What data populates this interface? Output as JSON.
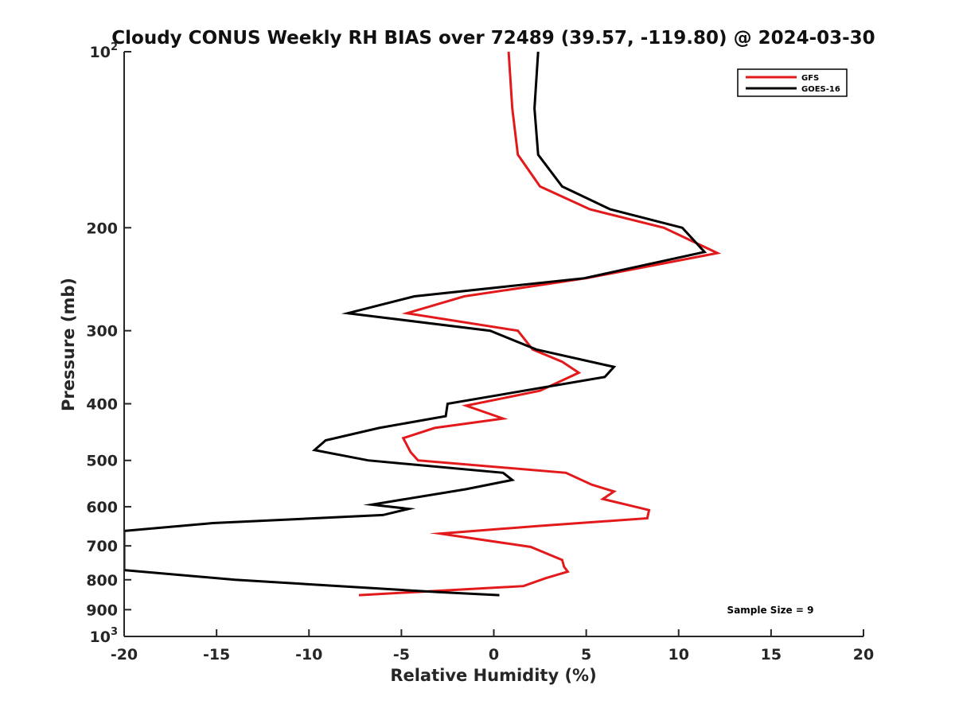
{
  "chart_data": {
    "type": "line",
    "title": "Cloudy CONUS Weekly RH BIAS over 72489 (39.57, -119.80) @ 2024-03-30",
    "xlabel": "Relative Humidity (%)",
    "ylabel": "Pressure (mb)",
    "xlim": [
      -20,
      20
    ],
    "ylim": [
      1000,
      100
    ],
    "yscale": "log",
    "x_ticks": [
      -20,
      -15,
      -10,
      -5,
      0,
      5,
      10,
      15,
      20
    ],
    "x_tick_labels": [
      "-20",
      "-15",
      "-10",
      "-5",
      "0",
      "5",
      "10",
      "15",
      "20"
    ],
    "y_ticks": [
      100,
      200,
      300,
      400,
      500,
      600,
      700,
      800,
      900,
      1000
    ],
    "y_tick_labels": [
      {
        "base": "10",
        "sup": "2"
      },
      {
        "base": "200"
      },
      {
        "base": "300"
      },
      {
        "base": "400"
      },
      {
        "base": "500"
      },
      {
        "base": "600"
      },
      {
        "base": "700"
      },
      {
        "base": "800"
      },
      {
        "base": "900"
      },
      {
        "base": "10",
        "sup": "3"
      }
    ],
    "grid": false,
    "legend_position": "top-right",
    "annotation": "Sample Size = 9",
    "series": [
      {
        "name": "GFS",
        "color": "#e31a1c",
        "points": [
          [
            0.8,
            100
          ],
          [
            1.0,
            125
          ],
          [
            1.3,
            150
          ],
          [
            2.5,
            170
          ],
          [
            5.2,
            186
          ],
          [
            9.2,
            200
          ],
          [
            12.1,
            221
          ],
          [
            5.0,
            244
          ],
          [
            -1.6,
            262
          ],
          [
            -4.7,
            280
          ],
          [
            1.3,
            300
          ],
          [
            2.1,
            323
          ],
          [
            3.7,
            339
          ],
          [
            4.6,
            354
          ],
          [
            2.5,
            380
          ],
          [
            -1.5,
            403
          ],
          [
            0.5,
            424
          ],
          [
            -3.2,
            440
          ],
          [
            -4.9,
            458
          ],
          [
            -4.5,
            484
          ],
          [
            -4.1,
            500
          ],
          [
            3.9,
            525
          ],
          [
            5.3,
            550
          ],
          [
            6.5,
            565
          ],
          [
            5.9,
            582
          ],
          [
            8.4,
            608
          ],
          [
            8.3,
            628
          ],
          [
            2.5,
            647
          ],
          [
            -2.9,
            667
          ],
          [
            2.0,
            703
          ],
          [
            3.7,
            740
          ],
          [
            3.8,
            760
          ],
          [
            4.0,
            775
          ],
          [
            2.8,
            795
          ],
          [
            1.6,
            820
          ],
          [
            -7.3,
            850
          ]
        ]
      },
      {
        "name": "GOES-16",
        "color": "#000000",
        "points": [
          [
            2.4,
            100
          ],
          [
            2.2,
            125
          ],
          [
            2.4,
            150
          ],
          [
            3.7,
            170
          ],
          [
            6.3,
            186
          ],
          [
            10.2,
            200
          ],
          [
            11.4,
            220
          ],
          [
            4.9,
            244
          ],
          [
            -4.3,
            262
          ],
          [
            -7.9,
            280
          ],
          [
            -0.2,
            300
          ],
          [
            2.3,
            323
          ],
          [
            6.5,
            346
          ],
          [
            6.0,
            360
          ],
          [
            -2.5,
            400
          ],
          [
            -2.6,
            420
          ],
          [
            -6.2,
            440
          ],
          [
            -9.1,
            462
          ],
          [
            -9.7,
            480
          ],
          [
            -6.8,
            500
          ],
          [
            0.5,
            525
          ],
          [
            1.0,
            540
          ],
          [
            -1.5,
            560
          ],
          [
            -6.6,
            595
          ],
          [
            -4.6,
            605
          ],
          [
            -6.0,
            620
          ],
          [
            -15.2,
            640
          ],
          [
            -20.0,
            660
          ],
          [
            -20.0,
            770
          ],
          [
            -14.0,
            800
          ],
          [
            -3.0,
            840
          ],
          [
            0.3,
            850
          ]
        ]
      }
    ]
  }
}
